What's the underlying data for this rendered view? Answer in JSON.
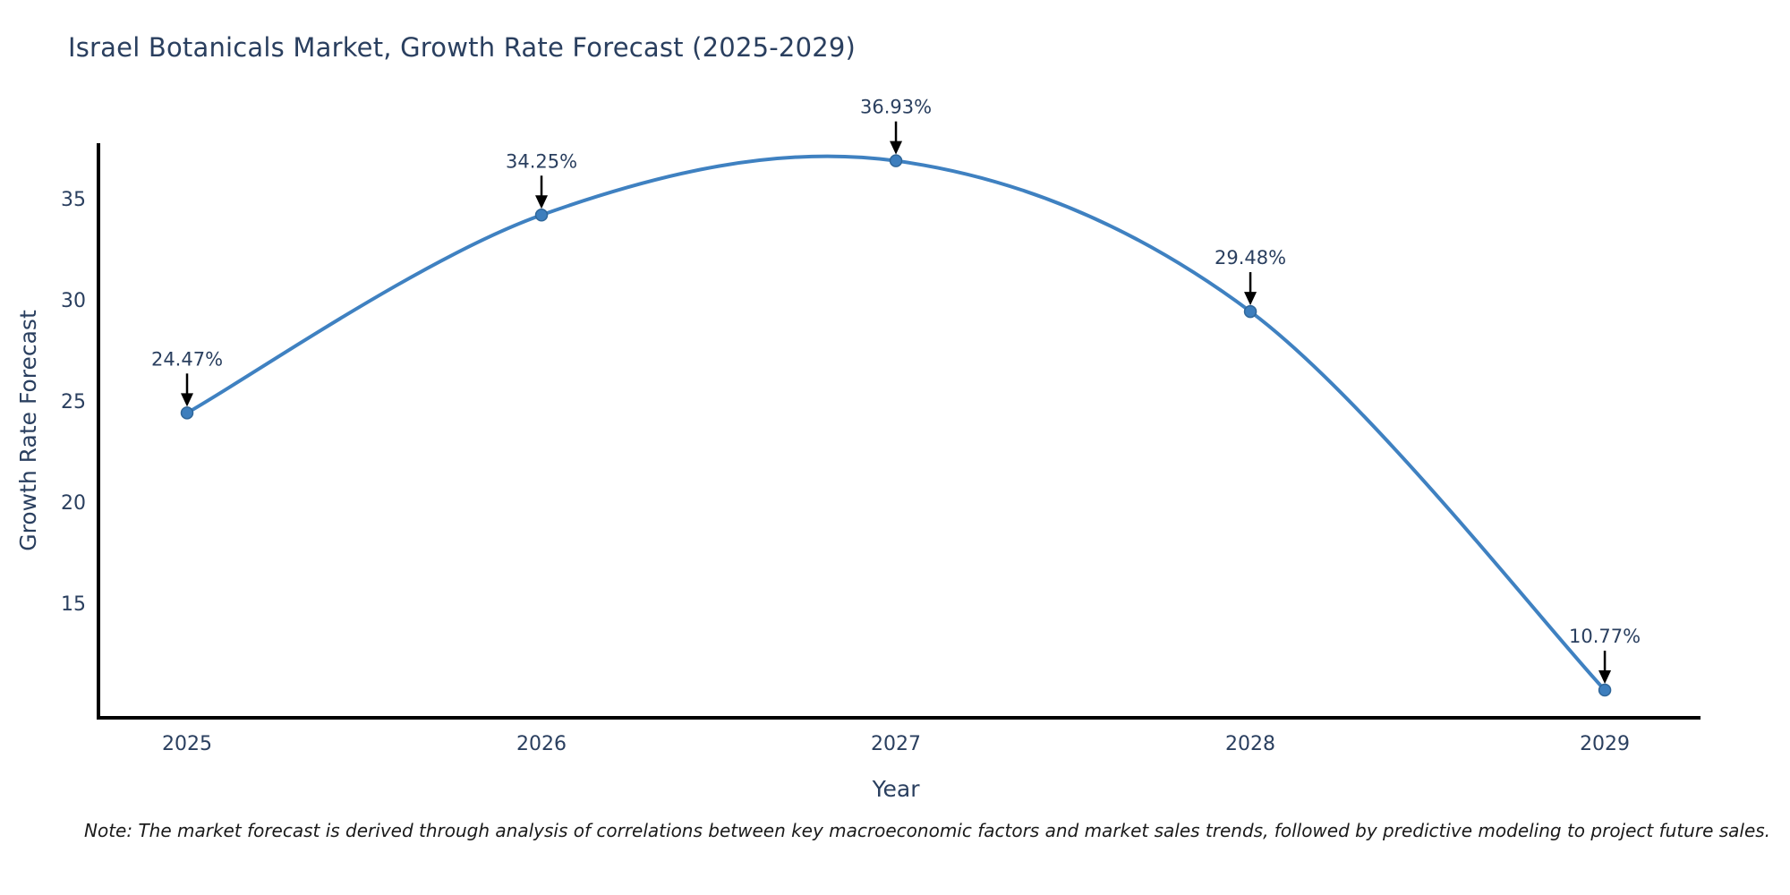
{
  "title": "Israel Botanicals Market, Growth Rate Forecast (2025-2029)",
  "note": "Note: The market forecast is derived through analysis of correlations between key macroeconomic factors and market sales trends, followed by predictive modeling to project future sales.",
  "chart_data": {
    "type": "line",
    "title": "Israel Botanicals Market, Growth Rate Forecast (2025-2029)",
    "x": [
      2025,
      2026,
      2027,
      2028,
      2029
    ],
    "values": [
      24.47,
      34.25,
      36.93,
      29.48,
      10.77
    ],
    "point_labels": [
      "24.47%",
      "34.25%",
      "36.93%",
      "29.48%",
      "10.77%"
    ],
    "xlabel": "Year",
    "ylabel": "Growth Rate Forecast",
    "xtick_labels": [
      "2025",
      "2026",
      "2027",
      "2028",
      "2029"
    ],
    "yticks": [
      15,
      20,
      25,
      30,
      35
    ],
    "xlim": [
      2024.75,
      2029.27
    ],
    "ylim": [
      9.4,
      37.8
    ],
    "line_shape": "spline",
    "grid": false,
    "legend": "none",
    "colors": {
      "line": "#3f81c1",
      "marker_fill": "#3d7ebd",
      "marker_edge": "#2f6699",
      "axis_line": "#000000",
      "tick_text": "#2a3f5f",
      "annotation_text": "#2a3f5f",
      "annotation_arrow": "#000000"
    }
  }
}
